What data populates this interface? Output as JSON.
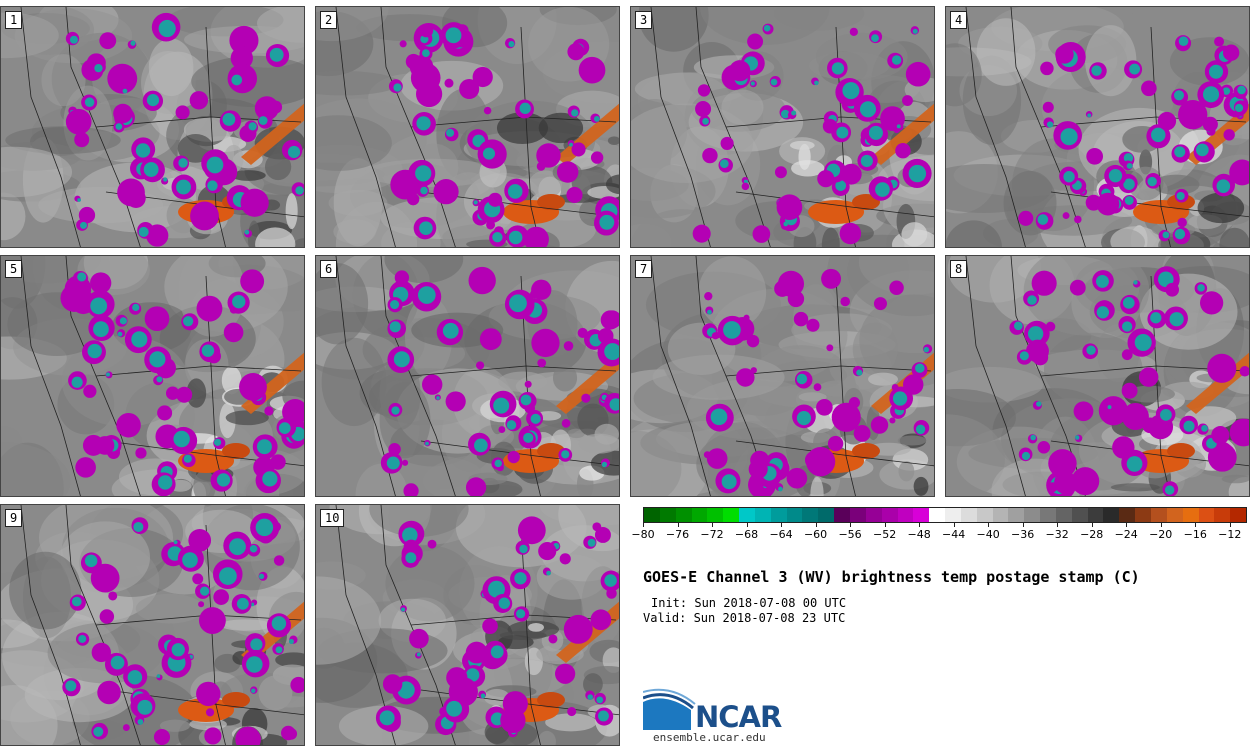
{
  "panels": [
    {
      "label": "1"
    },
    {
      "label": "2"
    },
    {
      "label": "3"
    },
    {
      "label": "4"
    },
    {
      "label": "5"
    },
    {
      "label": "6"
    },
    {
      "label": "7"
    },
    {
      "label": "8"
    },
    {
      "label": "9"
    },
    {
      "label": "10"
    }
  ],
  "colorbar": {
    "ticks": [
      "−80",
      "−76",
      "−72",
      "−68",
      "−64",
      "−60",
      "−56",
      "−52",
      "−48",
      "−44",
      "−40",
      "−36",
      "−32",
      "−28",
      "−24",
      "−20",
      "−16",
      "−12"
    ],
    "tick_values": [
      -80,
      -76,
      -72,
      -68,
      -64,
      -60,
      -56,
      -52,
      -48,
      -44,
      -40,
      -36,
      -32,
      -28,
      -24,
      -20,
      -16,
      -12
    ],
    "range": [
      -80,
      -10
    ],
    "colors": [
      "#006400",
      "#007a00",
      "#009000",
      "#00a800",
      "#00c000",
      "#00dd00",
      "#00c8c8",
      "#00b4b4",
      "#009c9c",
      "#008a8a",
      "#007878",
      "#006a6a",
      "#5a005a",
      "#7a007a",
      "#960096",
      "#aa00aa",
      "#c000c0",
      "#d800d8",
      "#ffffff",
      "#eeeeee",
      "#dcdcdc",
      "#c8c8c8",
      "#b4b4b4",
      "#a0a0a0",
      "#8c8c8c",
      "#787878",
      "#646464",
      "#505050",
      "#3c3c3c",
      "#2a2a2a",
      "#5a2a14",
      "#8c3a14",
      "#b4501e",
      "#d2641e",
      "#e66e10",
      "#dc5014",
      "#c83c0a",
      "#b42800"
    ]
  },
  "title": "GOES-E Channel 3 (WV) brightness temp postage stamp (C)",
  "init": "Init: Sun 2018-07-08 00 UTC",
  "valid": "Valid: Sun 2018-07-08 23 UTC",
  "logo": {
    "word": "NCAR",
    "site": "ensemble.ucar.edu",
    "color": "#1c4f8a"
  },
  "palette": {
    "cloud_magenta": "#b400b4",
    "cloud_teal": "#1ea0a0",
    "warm_orange": "#dc5a14",
    "background_gray": "#8a8a8a"
  }
}
